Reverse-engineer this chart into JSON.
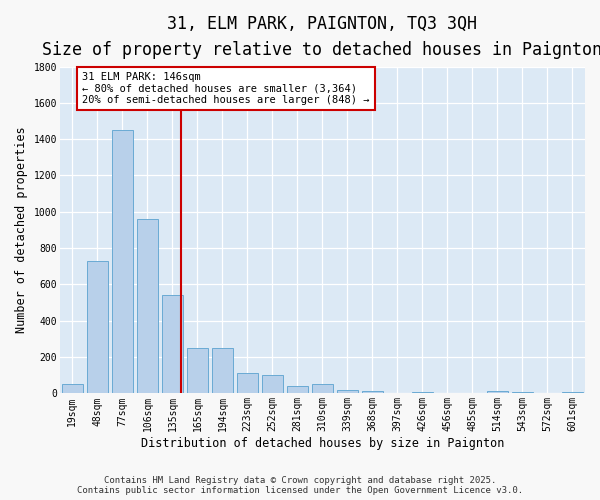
{
  "title": "31, ELM PARK, PAIGNTON, TQ3 3QH",
  "subtitle": "Size of property relative to detached houses in Paignton",
  "xlabel": "Distribution of detached houses by size in Paignton",
  "ylabel": "Number of detached properties",
  "categories": [
    "19sqm",
    "48sqm",
    "77sqm",
    "106sqm",
    "135sqm",
    "165sqm",
    "194sqm",
    "223sqm",
    "252sqm",
    "281sqm",
    "310sqm",
    "339sqm",
    "368sqm",
    "397sqm",
    "426sqm",
    "456sqm",
    "485sqm",
    "514sqm",
    "543sqm",
    "572sqm",
    "601sqm"
  ],
  "values": [
    50,
    730,
    1450,
    960,
    540,
    250,
    250,
    110,
    100,
    40,
    50,
    20,
    15,
    5,
    10,
    5,
    5,
    15,
    10,
    5,
    10
  ],
  "bar_color": "#b8d0ea",
  "bar_edge_color": "#6aaad4",
  "background_color": "#dce9f5",
  "grid_color": "#ffffff",
  "vline_x_index": 4,
  "vline_color": "#cc0000",
  "annotation_text": "31 ELM PARK: 146sqm\n← 80% of detached houses are smaller (3,364)\n20% of semi-detached houses are larger (848) →",
  "annotation_box_edgecolor": "#cc0000",
  "footer": "Contains HM Land Registry data © Crown copyright and database right 2025.\nContains public sector information licensed under the Open Government Licence v3.0.",
  "ylim": [
    0,
    1800
  ],
  "yticks": [
    0,
    200,
    400,
    600,
    800,
    1000,
    1200,
    1400,
    1600,
    1800
  ],
  "title_fontsize": 12,
  "subtitle_fontsize": 10,
  "axis_label_fontsize": 8.5,
  "tick_fontsize": 7,
  "annotation_fontsize": 7.5,
  "footer_fontsize": 6.5,
  "fig_facecolor": "#f8f8f8"
}
